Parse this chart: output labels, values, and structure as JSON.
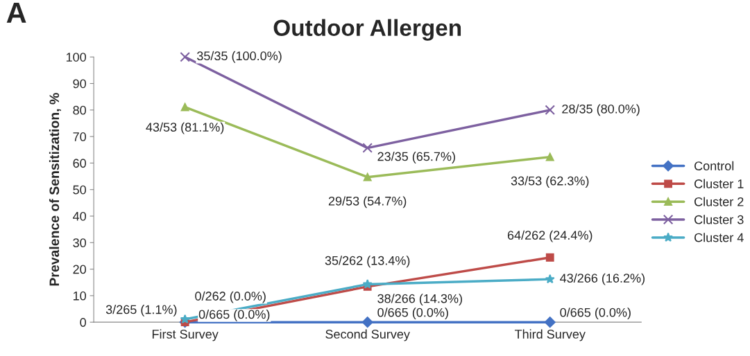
{
  "chart_data": {
    "type": "line",
    "title": "Outdoor Allergen",
    "ylabel": "Prevalence of Sensitization, %",
    "categories": [
      "First Survey",
      "Second Survey",
      "Third Survey"
    ],
    "ylim": [
      0,
      100
    ],
    "yticks": [
      0,
      10,
      20,
      30,
      40,
      50,
      60,
      70,
      80,
      90,
      100
    ],
    "grid": false,
    "legend": "right",
    "annotations": [
      "A"
    ],
    "series": [
      {
        "name": "Control",
        "color": "#4472c4",
        "marker": "diamond",
        "values": [
          0,
          0,
          0
        ],
        "value_labels": [
          "0/665 (0.0%)",
          "0/665 (0.0%)",
          "0/665 (0.0%)"
        ]
      },
      {
        "name": "Cluster 1",
        "color": "#be4b48",
        "marker": "square",
        "values": [
          0,
          13.4,
          24.4
        ],
        "value_labels": [
          "0/262 (0.0%)",
          "35/262 (13.4%)",
          "64/262 (24.4%)"
        ]
      },
      {
        "name": "Cluster 2",
        "color": "#9bbb59",
        "marker": "triangle",
        "values": [
          81.1,
          54.7,
          62.3
        ],
        "value_labels": [
          "43/53 (81.1%)",
          "29/53 (54.7%)",
          "33/53 (62.3%)"
        ]
      },
      {
        "name": "Cluster 3",
        "color": "#7d60a0",
        "marker": "cross",
        "values": [
          100,
          65.7,
          80
        ],
        "value_labels": [
          "35/35 (100.0%)",
          "23/35 (65.7%)",
          "28/35 (80.0%)"
        ]
      },
      {
        "name": "Cluster 4",
        "color": "#4bacc6",
        "marker": "star",
        "values": [
          1.1,
          14.3,
          16.2
        ],
        "value_labels": [
          "3/265 (1.1%)",
          "38/266 (14.3%)",
          "43/266 (16.2%)"
        ]
      }
    ]
  }
}
